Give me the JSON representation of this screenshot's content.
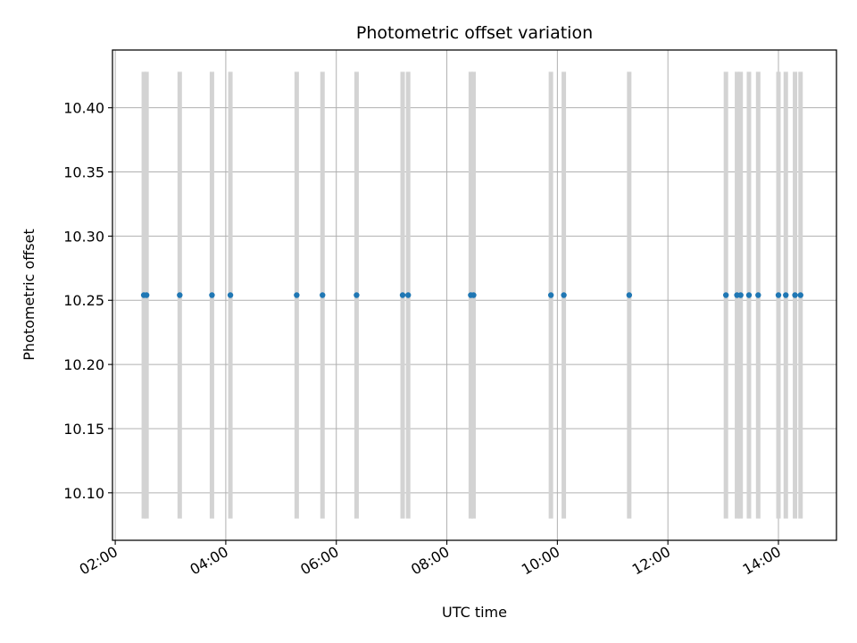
{
  "chart_data": {
    "type": "scatter",
    "title": "Photometric offset variation",
    "xlabel": "UTC time",
    "ylabel": "Photometric offset",
    "grid": true,
    "xlim": [
      "01:57",
      "15:03"
    ],
    "ylim": [
      10.063,
      10.445
    ],
    "x_tick_labels": [
      "02:00",
      "04:00",
      "06:00",
      "08:00",
      "10:00",
      "12:00",
      "14:00"
    ],
    "y_tick_labels": [
      "10.10",
      "10.15",
      "10.20",
      "10.25",
      "10.30",
      "10.35",
      "10.40"
    ],
    "series": [
      {
        "marker_color": "#1f77b4",
        "band_color": "#d3d3d3",
        "band_range": [
          10.08,
          10.428
        ],
        "points": [
          {
            "t": "02:31",
            "y": 10.254
          },
          {
            "t": "02:34",
            "y": 10.254
          },
          {
            "t": "03:10",
            "y": 10.254
          },
          {
            "t": "03:45",
            "y": 10.254
          },
          {
            "t": "04:05",
            "y": 10.254
          },
          {
            "t": "05:17",
            "y": 10.254
          },
          {
            "t": "05:45",
            "y": 10.254
          },
          {
            "t": "06:22",
            "y": 10.254
          },
          {
            "t": "07:12",
            "y": 10.254
          },
          {
            "t": "07:18",
            "y": 10.254
          },
          {
            "t": "08:26",
            "y": 10.254
          },
          {
            "t": "08:29",
            "y": 10.254
          },
          {
            "t": "09:53",
            "y": 10.254
          },
          {
            "t": "10:07",
            "y": 10.254
          },
          {
            "t": "11:18",
            "y": 10.254
          },
          {
            "t": "13:03",
            "y": 10.254
          },
          {
            "t": "13:15",
            "y": 10.254
          },
          {
            "t": "13:19",
            "y": 10.254
          },
          {
            "t": "13:28",
            "y": 10.254
          },
          {
            "t": "13:38",
            "y": 10.254
          },
          {
            "t": "14:00",
            "y": 10.254
          },
          {
            "t": "14:08",
            "y": 10.254
          },
          {
            "t": "14:18",
            "y": 10.254
          },
          {
            "t": "14:24",
            "y": 10.254
          }
        ]
      }
    ]
  }
}
